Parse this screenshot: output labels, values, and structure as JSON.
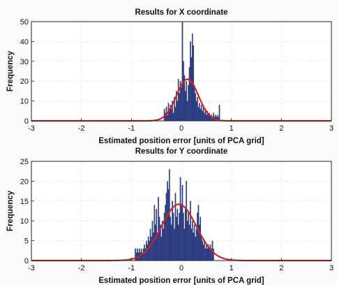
{
  "chart_data": [
    {
      "type": "bar",
      "title": "Results for X coordinate",
      "xlabel": "Estimated position error [units of PCA grid]",
      "ylabel": "Frequency",
      "xlim": [
        -3,
        3
      ],
      "ylim": [
        0,
        50
      ],
      "x_ticks": [
        -3,
        -2,
        -1,
        0,
        1,
        2,
        3
      ],
      "y_ticks": [
        0,
        10,
        20,
        30,
        40,
        50
      ],
      "grid": true,
      "bar_color": "#2f3f86",
      "curve_color": "#c62828",
      "series": [
        {
          "kind": "histogram",
          "bin_width": 0.02,
          "bins": [
            {
              "x": -0.34,
              "y": 6
            },
            {
              "x": -0.32,
              "y": 4
            },
            {
              "x": -0.3,
              "y": 7
            },
            {
              "x": -0.28,
              "y": 3
            },
            {
              "x": -0.26,
              "y": 9
            },
            {
              "x": -0.24,
              "y": 5
            },
            {
              "x": -0.22,
              "y": 8
            },
            {
              "x": -0.2,
              "y": 6
            },
            {
              "x": -0.18,
              "y": 10
            },
            {
              "x": -0.16,
              "y": 4
            },
            {
              "x": -0.14,
              "y": 12
            },
            {
              "x": -0.12,
              "y": 7
            },
            {
              "x": -0.1,
              "y": 15
            },
            {
              "x": -0.08,
              "y": 10
            },
            {
              "x": -0.06,
              "y": 21
            },
            {
              "x": -0.04,
              "y": 14
            },
            {
              "x": -0.02,
              "y": 20
            },
            {
              "x": 0.0,
              "y": 17
            },
            {
              "x": 0.02,
              "y": 50
            },
            {
              "x": 0.04,
              "y": 30
            },
            {
              "x": 0.06,
              "y": 23
            },
            {
              "x": 0.08,
              "y": 15
            },
            {
              "x": 0.1,
              "y": 20
            },
            {
              "x": 0.12,
              "y": 10
            },
            {
              "x": 0.14,
              "y": 18
            },
            {
              "x": 0.16,
              "y": 27
            },
            {
              "x": 0.18,
              "y": 40
            },
            {
              "x": 0.2,
              "y": 32
            },
            {
              "x": 0.22,
              "y": 44
            },
            {
              "x": 0.24,
              "y": 38
            },
            {
              "x": 0.26,
              "y": 18
            },
            {
              "x": 0.28,
              "y": 14
            },
            {
              "x": 0.3,
              "y": 10
            },
            {
              "x": 0.32,
              "y": 12
            },
            {
              "x": 0.34,
              "y": 7
            },
            {
              "x": 0.36,
              "y": 9
            },
            {
              "x": 0.38,
              "y": 6
            },
            {
              "x": 0.4,
              "y": 8
            },
            {
              "x": 0.42,
              "y": 5
            },
            {
              "x": 0.44,
              "y": 7
            },
            {
              "x": 0.46,
              "y": 4
            },
            {
              "x": 0.48,
              "y": 6
            },
            {
              "x": 0.5,
              "y": 3
            },
            {
              "x": 0.52,
              "y": 5
            },
            {
              "x": 0.54,
              "y": 3
            },
            {
              "x": 0.56,
              "y": 4
            },
            {
              "x": 0.58,
              "y": 2
            },
            {
              "x": 0.6,
              "y": 3
            },
            {
              "x": 0.62,
              "y": 2
            },
            {
              "x": 0.64,
              "y": 4
            },
            {
              "x": 0.66,
              "y": 2
            },
            {
              "x": 0.68,
              "y": 3
            },
            {
              "x": 0.7,
              "y": 2
            },
            {
              "x": 0.72,
              "y": 3
            },
            {
              "x": 0.74,
              "y": 2
            },
            {
              "x": 0.76,
              "y": 8
            }
          ]
        },
        {
          "kind": "normal_fit",
          "mean": 0.12,
          "std": 0.22,
          "peak": 21
        }
      ]
    },
    {
      "type": "bar",
      "title": "Results for Y coordinate",
      "xlabel": "Estimated position error [units of PCA grid]",
      "ylabel": "Frequency",
      "xlim": [
        -3,
        3
      ],
      "ylim": [
        0,
        25
      ],
      "x_ticks": [
        -3,
        -2,
        -1,
        0,
        1,
        2,
        3
      ],
      "y_ticks": [
        0,
        5,
        10,
        15,
        20,
        25
      ],
      "grid": true,
      "bar_color": "#2f3f86",
      "curve_color": "#c62828",
      "series": [
        {
          "kind": "histogram",
          "bin_width": 0.02,
          "bins": [
            {
              "x": -0.92,
              "y": 3
            },
            {
              "x": -0.9,
              "y": 2
            },
            {
              "x": -0.88,
              "y": 3
            },
            {
              "x": -0.86,
              "y": 2
            },
            {
              "x": -0.84,
              "y": 3
            },
            {
              "x": -0.82,
              "y": 2
            },
            {
              "x": -0.8,
              "y": 3
            },
            {
              "x": -0.78,
              "y": 2
            },
            {
              "x": -0.76,
              "y": 3
            },
            {
              "x": -0.74,
              "y": 4
            },
            {
              "x": -0.72,
              "y": 3
            },
            {
              "x": -0.7,
              "y": 5
            },
            {
              "x": -0.68,
              "y": 4
            },
            {
              "x": -0.66,
              "y": 6
            },
            {
              "x": -0.64,
              "y": 5
            },
            {
              "x": -0.62,
              "y": 8
            },
            {
              "x": -0.6,
              "y": 6
            },
            {
              "x": -0.58,
              "y": 10
            },
            {
              "x": -0.56,
              "y": 7
            },
            {
              "x": -0.54,
              "y": 14
            },
            {
              "x": -0.52,
              "y": 9
            },
            {
              "x": -0.5,
              "y": 13
            },
            {
              "x": -0.48,
              "y": 7
            },
            {
              "x": -0.46,
              "y": 16
            },
            {
              "x": -0.44,
              "y": 11
            },
            {
              "x": -0.42,
              "y": 9
            },
            {
              "x": -0.4,
              "y": 6
            },
            {
              "x": -0.38,
              "y": 10
            },
            {
              "x": -0.36,
              "y": 8
            },
            {
              "x": -0.34,
              "y": 12
            },
            {
              "x": -0.32,
              "y": 14
            },
            {
              "x": -0.3,
              "y": 17
            },
            {
              "x": -0.28,
              "y": 20
            },
            {
              "x": -0.26,
              "y": 18
            },
            {
              "x": -0.24,
              "y": 23
            },
            {
              "x": -0.22,
              "y": 11
            },
            {
              "x": -0.2,
              "y": 9
            },
            {
              "x": -0.18,
              "y": 15
            },
            {
              "x": -0.16,
              "y": 12
            },
            {
              "x": -0.14,
              "y": 8
            },
            {
              "x": -0.12,
              "y": 17
            },
            {
              "x": -0.1,
              "y": 11
            },
            {
              "x": -0.08,
              "y": 13
            },
            {
              "x": -0.06,
              "y": 9
            },
            {
              "x": -0.04,
              "y": 12
            },
            {
              "x": -0.02,
              "y": 21
            },
            {
              "x": 0.0,
              "y": 14
            },
            {
              "x": 0.02,
              "y": 19
            },
            {
              "x": 0.04,
              "y": 12
            },
            {
              "x": 0.06,
              "y": 8
            },
            {
              "x": 0.08,
              "y": 13
            },
            {
              "x": 0.1,
              "y": 20
            },
            {
              "x": 0.12,
              "y": 10
            },
            {
              "x": 0.14,
              "y": 12
            },
            {
              "x": 0.16,
              "y": 9
            },
            {
              "x": 0.18,
              "y": 15
            },
            {
              "x": 0.2,
              "y": 8
            },
            {
              "x": 0.22,
              "y": 10
            },
            {
              "x": 0.24,
              "y": 7
            },
            {
              "x": 0.26,
              "y": 9
            },
            {
              "x": 0.28,
              "y": 6
            },
            {
              "x": 0.3,
              "y": 8
            },
            {
              "x": 0.32,
              "y": 12
            },
            {
              "x": 0.34,
              "y": 14
            },
            {
              "x": 0.36,
              "y": 9
            },
            {
              "x": 0.38,
              "y": 11
            },
            {
              "x": 0.4,
              "y": 6
            },
            {
              "x": 0.42,
              "y": 5
            },
            {
              "x": 0.44,
              "y": 4
            },
            {
              "x": 0.46,
              "y": 5
            },
            {
              "x": 0.48,
              "y": 3
            },
            {
              "x": 0.5,
              "y": 4
            },
            {
              "x": 0.52,
              "y": 3
            },
            {
              "x": 0.54,
              "y": 4
            },
            {
              "x": 0.56,
              "y": 3
            },
            {
              "x": 0.58,
              "y": 4
            },
            {
              "x": 0.6,
              "y": 3
            },
            {
              "x": 0.62,
              "y": 5
            },
            {
              "x": 0.64,
              "y": 3
            }
          ]
        },
        {
          "kind": "normal_fit",
          "mean": -0.05,
          "std": 0.35,
          "peak": 14.2
        }
      ]
    }
  ]
}
